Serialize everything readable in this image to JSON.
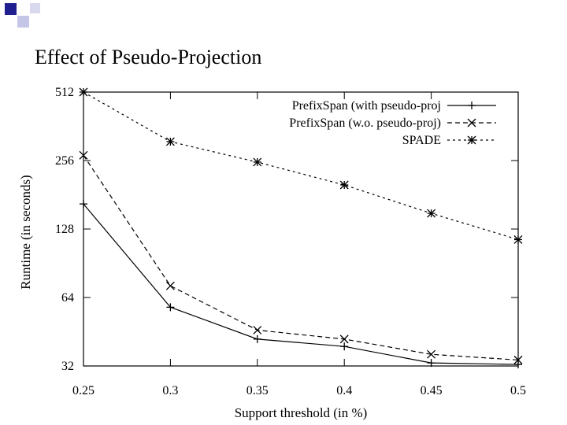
{
  "slide": {
    "title": "Effect of Pseudo-Projection",
    "accent_color": "#1f1f8f",
    "accent_light": "#c5c5e8"
  },
  "chart_data": {
    "type": "line",
    "title": "",
    "xlabel": "Support threshold (in %)",
    "ylabel": "Runtime (in seconds)",
    "x": [
      0.25,
      0.3,
      0.35,
      0.4,
      0.45,
      0.5
    ],
    "x_tick_labels": [
      "0.25",
      "0.3",
      "0.35",
      "0.4",
      "0.45",
      "0.5"
    ],
    "xlim": [
      0.25,
      0.5
    ],
    "y_scale": "log2",
    "ylim": [
      32,
      512
    ],
    "y_ticks": [
      32,
      64,
      128,
      256,
      512
    ],
    "y_tick_labels": [
      "32",
      "64",
      "128",
      "256",
      "512"
    ],
    "grid": false,
    "legend_position": "top-right",
    "series": [
      {
        "name": "PrefixSpan (with pseudo-proj",
        "marker": "plus",
        "dash": "solid",
        "values": [
          165,
          58,
          42,
          39,
          33,
          32.5
        ]
      },
      {
        "name": "PrefixSpan (w.o. pseudo-proj)",
        "marker": "x",
        "dash": "dashed",
        "values": [
          270,
          72,
          46,
          42,
          36,
          34
        ]
      },
      {
        "name": "SPADE",
        "marker": "star",
        "dash": "dotted",
        "values": [
          512,
          310,
          252,
          200,
          150,
          115
        ]
      }
    ]
  }
}
